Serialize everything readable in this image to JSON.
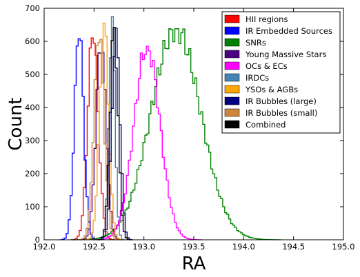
{
  "chart_data": {
    "type": "histogram",
    "xlabel": "RA",
    "ylabel": "Count",
    "xlim": [
      192.0,
      195.0
    ],
    "ylim": [
      0,
      700
    ],
    "x_ticks": [
      192.0,
      192.5,
      193.0,
      193.5,
      194.0,
      194.5,
      195.0
    ],
    "y_ticks": [
      0,
      100,
      200,
      300,
      400,
      500,
      600,
      700
    ],
    "grid": false,
    "legend_position": "top-right",
    "series": [
      {
        "name": "HII regions",
        "color": "#ff0000",
        "mean": 192.49,
        "sd": 0.052,
        "peak": 635
      },
      {
        "name": "IR Embedded Sources",
        "color": "#0000ff",
        "mean": 192.35,
        "sd": 0.045,
        "peak": 643
      },
      {
        "name": "SNRs",
        "color": "#008000",
        "mean": 193.32,
        "sd": 0.25,
        "peak": 638
      },
      {
        "name": "Young Massive Stars",
        "color": "#4b0082",
        "mean": 192.57,
        "sd": 0.05,
        "peak": 600
      },
      {
        "name": "OCs & ECs",
        "color": "#ff00ff",
        "mean": 193.03,
        "sd": 0.13,
        "peak": 585
      },
      {
        "name": "IRDCs",
        "color": "#4682b4",
        "mean": 192.68,
        "sd": 0.03,
        "peak": 675
      },
      {
        "name": "YSOs & AGBs",
        "color": "#ffa500",
        "mean": 192.6,
        "sd": 0.045,
        "peak": 655
      },
      {
        "name": "IR Bubbles (large)",
        "color": "#000080",
        "mean": 192.72,
        "sd": 0.04,
        "peak": 640
      },
      {
        "name": "IR Bubbles (small)",
        "color": "#cd853f",
        "mean": 192.55,
        "sd": 0.05,
        "peak": 633
      },
      {
        "name": "Combined",
        "color": "#000000",
        "mean": 192.7,
        "sd": 0.04,
        "peak": 642
      }
    ]
  }
}
